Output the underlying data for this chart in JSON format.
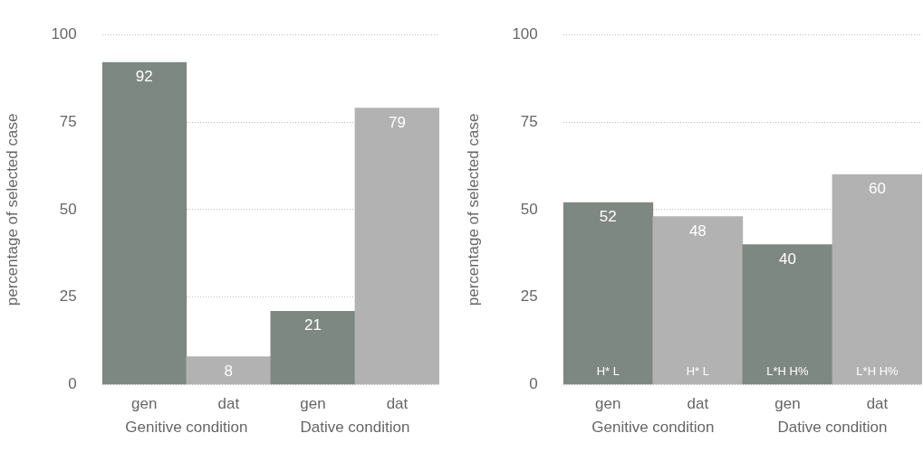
{
  "chart_data": [
    {
      "type": "bar",
      "ylabel": "percentage of selected case",
      "categories": [
        "gen",
        "dat",
        "gen",
        "dat"
      ],
      "values": [
        92,
        8,
        21,
        79
      ],
      "colors": [
        "#7e8883",
        "#b2b2b2",
        "#7e8883",
        "#b2b2b2"
      ],
      "ylim": [
        0,
        100
      ],
      "yticks": [
        0,
        25,
        50,
        75,
        100
      ],
      "grid": "y",
      "data_labels": true,
      "annotations": [
        "Genitive condition",
        "Dative condition"
      ]
    },
    {
      "type": "bar",
      "ylabel": "percentage of selected case",
      "categories": [
        "gen",
        "dat",
        "gen",
        "dat"
      ],
      "values": [
        52,
        48,
        40,
        60
      ],
      "colors": [
        "#7e8883",
        "#b2b2b2",
        "#7e8883",
        "#b2b2b2"
      ],
      "ylim": [
        0,
        100
      ],
      "yticks": [
        0,
        25,
        50,
        75,
        100
      ],
      "grid": "y",
      "data_labels": true,
      "annotations": [
        "Genitive condition",
        "Dative condition",
        "H* L",
        "H* L",
        "L*H H%",
        "L*H H%"
      ]
    }
  ]
}
